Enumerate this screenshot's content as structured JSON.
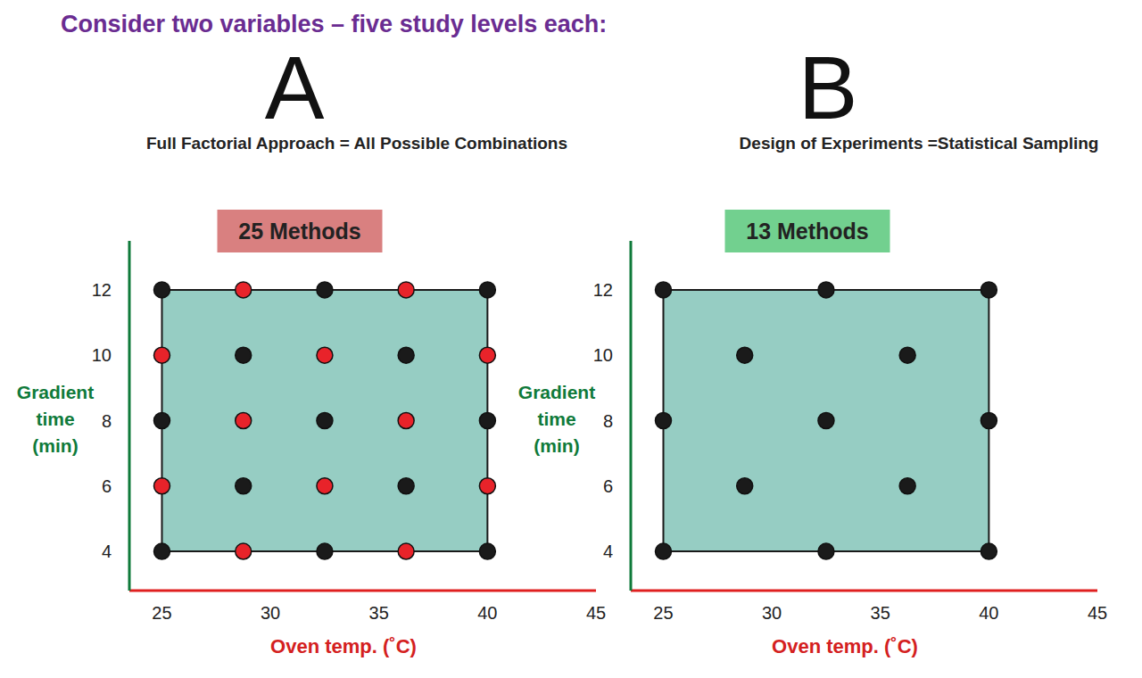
{
  "heading": "Consider two variables – five study levels each:",
  "chart_data": [
    {
      "type": "scatter",
      "title": "A",
      "subtitle": "Full Factorial Approach = All Possible Combinations",
      "annotation": {
        "text": "25 Methods",
        "color": "#d98080"
      },
      "xlabel": "Oven temp. (˚C)",
      "ylabel": "Gradient time (min)",
      "x": [
        25,
        28.75,
        32.5,
        36.25,
        40,
        25,
        28.75,
        32.5,
        36.25,
        40,
        25,
        28.75,
        32.5,
        36.25,
        40,
        25,
        28.75,
        32.5,
        36.25,
        40,
        25,
        28.75,
        32.5,
        36.25,
        40
      ],
      "y": [
        12,
        12,
        12,
        12,
        12,
        10,
        10,
        10,
        10,
        10,
        8,
        8,
        8,
        8,
        8,
        6,
        6,
        6,
        6,
        6,
        4,
        4,
        4,
        4,
        4
      ],
      "colors": [
        "#1a1a1a",
        "#e8232a",
        "#1a1a1a",
        "#e8232a",
        "#1a1a1a",
        "#e8232a",
        "#1a1a1a",
        "#e8232a",
        "#1a1a1a",
        "#e8232a",
        "#1a1a1a",
        "#e8232a",
        "#1a1a1a",
        "#e8232a",
        "#1a1a1a",
        "#e8232a",
        "#1a1a1a",
        "#e8232a",
        "#1a1a1a",
        "#e8232a",
        "#1a1a1a",
        "#e8232a",
        "#1a1a1a",
        "#e8232a",
        "#1a1a1a"
      ],
      "region": {
        "x": [
          25,
          40
        ],
        "y": [
          4,
          12
        ],
        "color": "#96cdc3"
      },
      "xlim": [
        23.5,
        45
      ],
      "ylim": [
        2.8,
        13.5
      ],
      "xticks": [
        25,
        30,
        35,
        40,
        45
      ],
      "yticks": [
        4,
        6,
        8,
        10,
        12
      ]
    },
    {
      "type": "scatter",
      "title": "B",
      "subtitle": "Design of Experiments =Statistical Sampling",
      "annotation": {
        "text": "13 Methods",
        "color": "#72d08f"
      },
      "xlabel": "Oven temp. (˚C)",
      "ylabel": "Gradient time (min)",
      "x": [
        25,
        32.5,
        40,
        28.75,
        36.25,
        25,
        32.5,
        40,
        28.75,
        36.25,
        25,
        32.5,
        40
      ],
      "y": [
        12,
        12,
        12,
        10,
        10,
        8,
        8,
        8,
        6,
        6,
        4,
        4,
        4
      ],
      "color": "#1a1a1a",
      "region": {
        "x": [
          25,
          40
        ],
        "y": [
          4,
          12
        ],
        "color": "#96cdc3"
      },
      "xlim": [
        23.5,
        45
      ],
      "ylim": [
        2.8,
        13.5
      ],
      "xticks": [
        25,
        30,
        35,
        40,
        45
      ],
      "yticks": [
        4,
        6,
        8,
        10,
        12
      ]
    }
  ]
}
